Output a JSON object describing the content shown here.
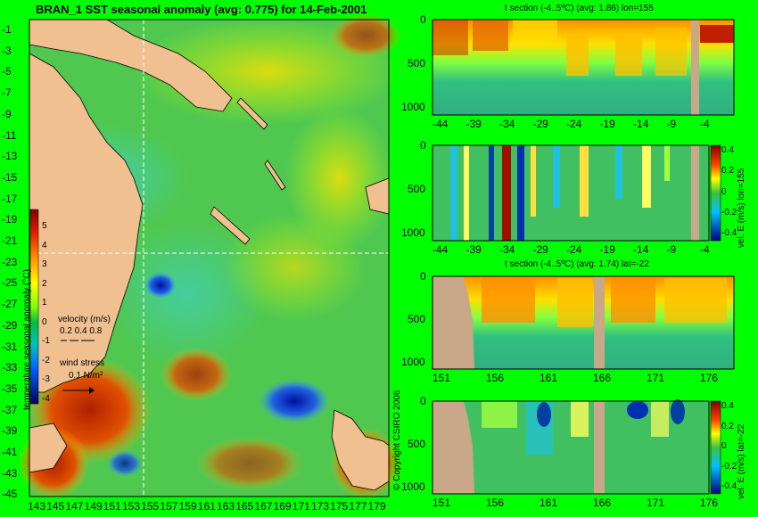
{
  "chart_data": [
    {
      "type": "heatmap",
      "title": "BRAN_1 SST seasonal anomaly (avg: 0.775) for 14-Feb-2001",
      "y_ticks": [
        "-1",
        "-3",
        "-5",
        "-7",
        "-9",
        "-11",
        "-13",
        "-15",
        "-17",
        "-19",
        "-21",
        "-23",
        "-25",
        "-27",
        "-29",
        "-31",
        "-33",
        "-35",
        "-37",
        "-39",
        "-41",
        "-43",
        "-45"
      ],
      "x_ticks": [
        "143",
        "145",
        "147",
        "149",
        "151",
        "153",
        "155",
        "157",
        "159",
        "161",
        "163",
        "165",
        "167",
        "169",
        "171",
        "173",
        "175",
        "177",
        "179"
      ],
      "crosshair": {
        "lon": 155,
        "lat": -22
      },
      "colorbar": {
        "label": "temperature seasonal anomaly (°C)",
        "ticks": [
          "5",
          "4",
          "3",
          "2",
          "1",
          "0",
          "-1",
          "-2",
          "-3",
          "-4"
        ],
        "range": [
          -4,
          5
        ]
      },
      "legend": {
        "velocity_label": "velocity (m/s)",
        "velocity_values": "0.2 0.4 0.8",
        "wind_label": "wind stress",
        "wind_value": "0.1 N/m²"
      }
    },
    {
      "type": "heatmap",
      "title": "t section (-4..5ºC) (avg: 1.86) lon=155",
      "x_ticks": [
        "-44",
        "-39",
        "-34",
        "-29",
        "-24",
        "-19",
        "-14",
        "-9",
        "-4"
      ],
      "y_ticks": [
        "0",
        "500",
        "1000"
      ],
      "ylim": [
        1050,
        0
      ]
    },
    {
      "type": "heatmap",
      "title": "",
      "x_ticks": [
        "-44",
        "-39",
        "-34",
        "-29",
        "-24",
        "-19",
        "-14",
        "-9",
        "-4"
      ],
      "y_ticks": [
        "0",
        "500",
        "1000"
      ],
      "colorbar_label": "vel. E (m/s) lon=155",
      "colorbar_ticks": [
        "0.4",
        "0.2",
        "0",
        "-0.2",
        "-0.4"
      ],
      "ylim": [
        1050,
        0
      ]
    },
    {
      "type": "heatmap",
      "title": "t section (-4..5ºC) (avg: 1.74) lat=-22",
      "x_ticks": [
        "151",
        "156",
        "161",
        "166",
        "171",
        "176"
      ],
      "y_ticks": [
        "0",
        "500",
        "1000"
      ],
      "ylim": [
        1050,
        0
      ]
    },
    {
      "type": "heatmap",
      "title": "",
      "x_ticks": [
        "151",
        "156",
        "161",
        "166",
        "171",
        "176"
      ],
      "y_ticks": [
        "0",
        "500",
        "1000"
      ],
      "colorbar_label": "vel. E (m/s) lat=-22",
      "colorbar_ticks": [
        "0.4",
        "0.2",
        "0",
        "-0.2",
        "-0.4"
      ],
      "ylim": [
        1050,
        0
      ]
    }
  ],
  "copyright": "© Copyright CSIRO 2006"
}
